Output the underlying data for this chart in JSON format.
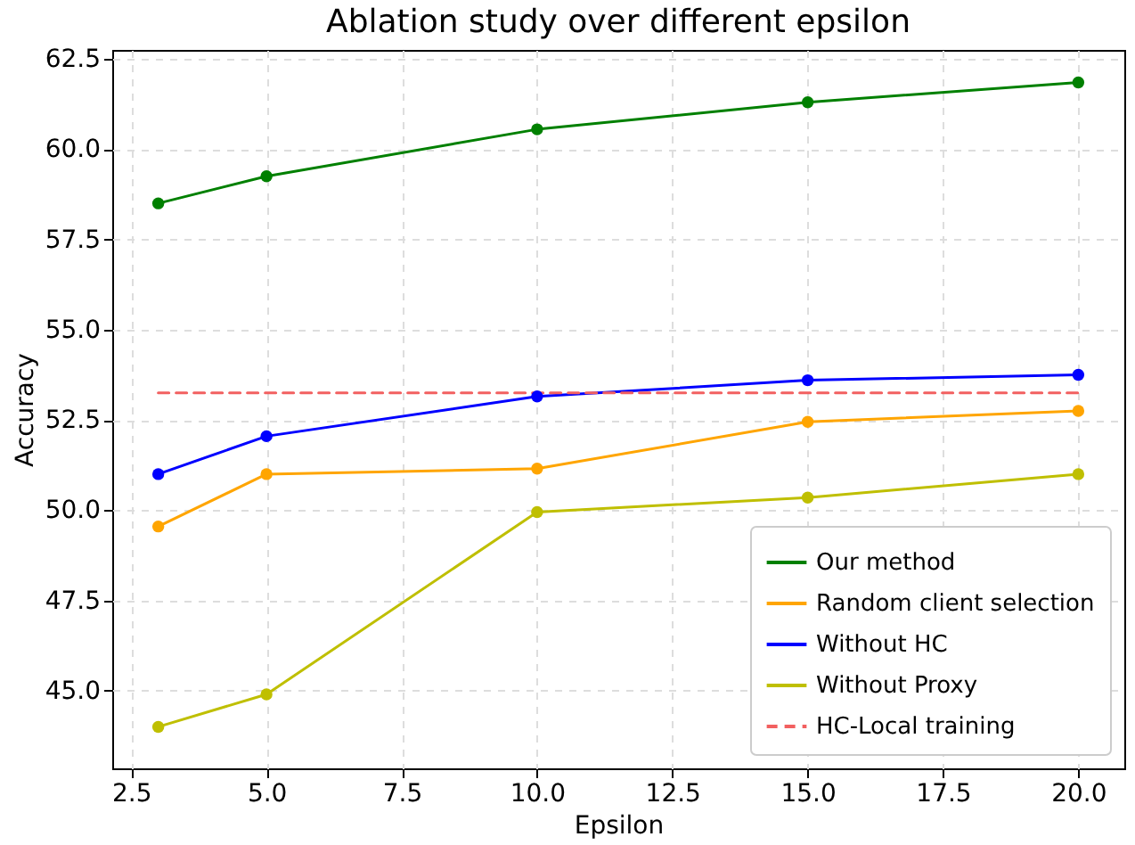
{
  "chart_data": {
    "type": "line",
    "title": "Ablation study over different epsilon",
    "xlabel": "Epsilon",
    "ylabel": "Accuracy",
    "x": [
      3,
      5,
      10,
      15,
      20
    ],
    "series": [
      {
        "name": "Our method",
        "color": "#008000",
        "values": [
          58.5,
          59.25,
          60.55,
          61.3,
          61.85
        ]
      },
      {
        "name": "Random client selection",
        "color": "#ffa500",
        "values": [
          49.55,
          51.0,
          51.15,
          52.45,
          52.75
        ]
      },
      {
        "name": "Without HC",
        "color": "#0000ff",
        "values": [
          51.0,
          52.05,
          53.15,
          53.6,
          53.75
        ]
      },
      {
        "name": "Without Proxy",
        "color": "#bfbf00",
        "values": [
          44.0,
          44.9,
          49.95,
          50.35,
          51.0
        ]
      },
      {
        "name": "HC-Local training",
        "color": "#f26060",
        "values": [
          53.25,
          53.25,
          53.25,
          53.25,
          53.25
        ],
        "marker": "none",
        "line_style": "dashed"
      }
    ],
    "xlim": [
      2.15,
      20.85
    ],
    "xticks": [
      {
        "value": 2.5,
        "label": "2.5"
      },
      {
        "value": 5,
        "label": "5.0"
      },
      {
        "value": 7.5,
        "label": "7.5"
      },
      {
        "value": 10,
        "label": "10.0"
      },
      {
        "value": 12.5,
        "label": "12.5"
      },
      {
        "value": 15,
        "label": "15.0"
      },
      {
        "value": 17.5,
        "label": "17.5"
      },
      {
        "value": 20,
        "label": "20.0"
      }
    ],
    "ylim": [
      42.85,
      62.75
    ],
    "yticks": [
      {
        "value": 45,
        "label": "45.0"
      },
      {
        "value": 47.5,
        "label": "47.5"
      },
      {
        "value": 50,
        "label": "50.0"
      },
      {
        "value": 52.5,
        "label": "52.5"
      },
      {
        "value": 55,
        "label": "55.0"
      },
      {
        "value": 57.5,
        "label": "57.5"
      },
      {
        "value": 60,
        "label": "60.0"
      },
      {
        "value": 62.5,
        "label": "62.5"
      }
    ],
    "grid": true,
    "legend": "bottom right",
    "line_style": "solid",
    "marker": "circle"
  }
}
